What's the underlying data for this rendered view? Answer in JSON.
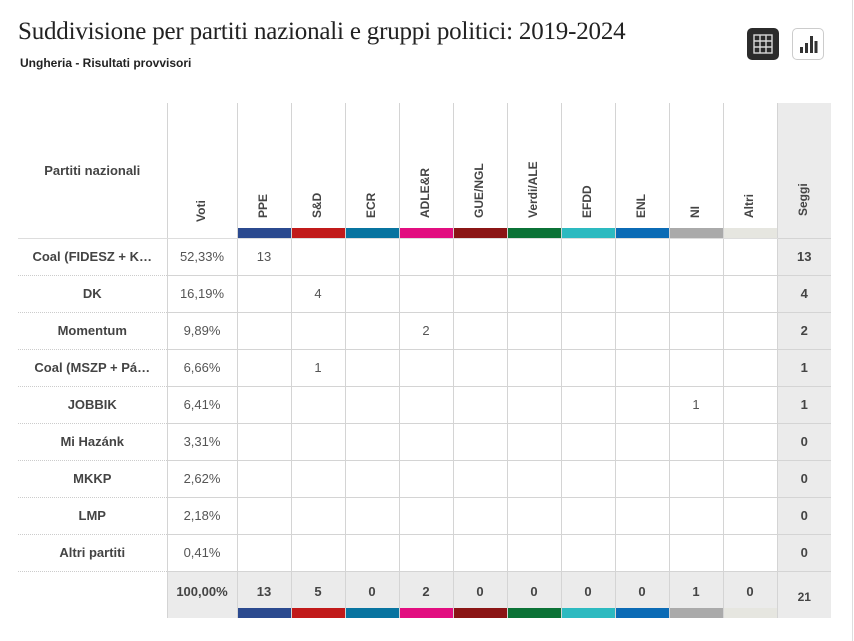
{
  "header": {
    "title": "Suddivisione per partiti nazionali e gruppi politici: 2019-2024",
    "subtitle": "Ungheria - Risultati provvisori",
    "view_buttons": [
      {
        "icon": "table-grid-icon",
        "active": true
      },
      {
        "icon": "bar-chart-icon",
        "active": false
      }
    ]
  },
  "table": {
    "name_header": "Partiti nazionali",
    "votes_header": "Voti",
    "seats_header": "Seggi",
    "groups": [
      {
        "label": "PPE",
        "color": "#2b4a8f"
      },
      {
        "label": "S&D",
        "color": "#c11a1a"
      },
      {
        "label": "ECR",
        "color": "#0874a0"
      },
      {
        "label": "ADLE&R",
        "color": "#e20e80"
      },
      {
        "label": "GUE/NGL",
        "color": "#8b1515"
      },
      {
        "label": "Verdi/ALE",
        "color": "#0b7236"
      },
      {
        "label": "EFDD",
        "color": "#2dbac0"
      },
      {
        "label": "ENL",
        "color": "#0b6bb5"
      },
      {
        "label": "NI",
        "color": "#aaaaaa"
      },
      {
        "label": "Altri",
        "color": "#e6e6e0"
      }
    ],
    "rows": [
      {
        "name": "Coal (FIDESZ + K…",
        "votes": "52,33%",
        "cells": [
          "13",
          "",
          "",
          "",
          "",
          "",
          "",
          "",
          "",
          ""
        ],
        "seats": "13"
      },
      {
        "name": "DK",
        "votes": "16,19%",
        "cells": [
          "",
          "4",
          "",
          "",
          "",
          "",
          "",
          "",
          "",
          ""
        ],
        "seats": "4"
      },
      {
        "name": "Momentum",
        "votes": "9,89%",
        "cells": [
          "",
          "",
          "",
          "2",
          "",
          "",
          "",
          "",
          "",
          ""
        ],
        "seats": "2"
      },
      {
        "name": "Coal (MSZP + Pá…",
        "votes": "6,66%",
        "cells": [
          "",
          "1",
          "",
          "",
          "",
          "",
          "",
          "",
          "",
          ""
        ],
        "seats": "1"
      },
      {
        "name": "JOBBIK",
        "votes": "6,41%",
        "cells": [
          "",
          "",
          "",
          "",
          "",
          "",
          "",
          "",
          "1",
          ""
        ],
        "seats": "1"
      },
      {
        "name": "Mi Hazánk",
        "votes": "3,31%",
        "cells": [
          "",
          "",
          "",
          "",
          "",
          "",
          "",
          "",
          "",
          ""
        ],
        "seats": "0"
      },
      {
        "name": "MKKP",
        "votes": "2,62%",
        "cells": [
          "",
          "",
          "",
          "",
          "",
          "",
          "",
          "",
          "",
          ""
        ],
        "seats": "0"
      },
      {
        "name": "LMP",
        "votes": "2,18%",
        "cells": [
          "",
          "",
          "",
          "",
          "",
          "",
          "",
          "",
          "",
          ""
        ],
        "seats": "0"
      },
      {
        "name": "Altri partiti",
        "votes": "0,41%",
        "cells": [
          "",
          "",
          "",
          "",
          "",
          "",
          "",
          "",
          "",
          ""
        ],
        "seats": "0"
      }
    ],
    "totals": {
      "votes": "100,00%",
      "cells": [
        "13",
        "5",
        "0",
        "2",
        "0",
        "0",
        "0",
        "0",
        "1",
        "0"
      ],
      "seats": "21"
    }
  }
}
